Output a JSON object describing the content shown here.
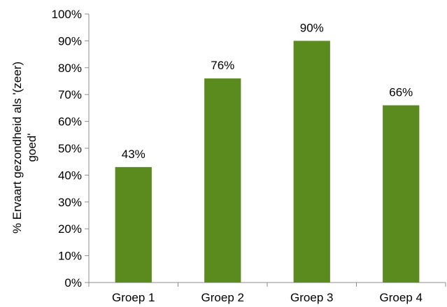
{
  "chart_data": {
    "type": "bar",
    "categories": [
      "Groep 1",
      "Groep 2",
      "Groep 3",
      "Groep 4"
    ],
    "values": [
      43,
      76,
      90,
      66
    ],
    "data_labels": [
      "43%",
      "76%",
      "90%",
      "66%"
    ],
    "title": "",
    "xlabel": "",
    "ylabel_lines": [
      "% Ervaart gezondheid als '(zeer)",
      "goed'"
    ],
    "ylim": [
      0,
      100
    ],
    "y_ticks": [
      0,
      10,
      20,
      30,
      40,
      50,
      60,
      70,
      80,
      90,
      100
    ],
    "y_tick_labels": [
      "0%",
      "10%",
      "20%",
      "30%",
      "40%",
      "50%",
      "60%",
      "70%",
      "80%",
      "90%",
      "100%"
    ],
    "grid": false,
    "legend": "none",
    "bar_color": "#5b8a1f"
  }
}
